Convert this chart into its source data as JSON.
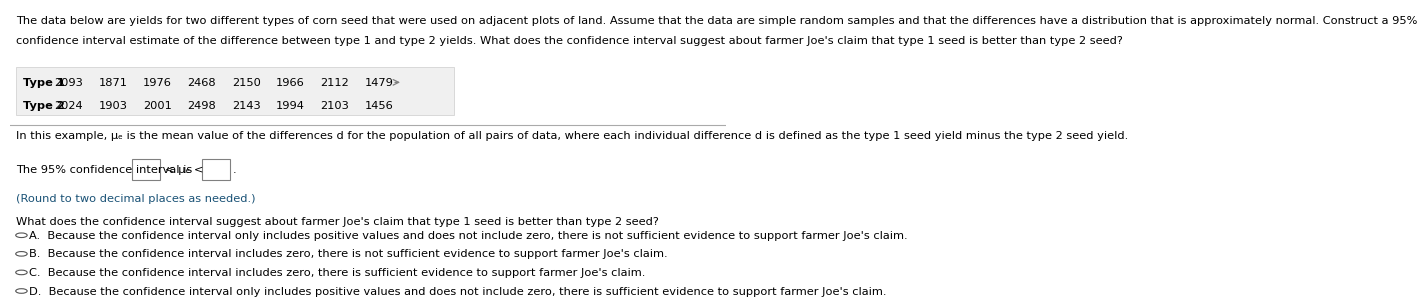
{
  "title_line1": "The data below are yields for two different types of corn seed that were used on adjacent plots of land. Assume that the data are simple random samples and that the differences have a distribution that is approximately normal. Construct a 95%",
  "title_line2": "confidence interval estimate of the difference between type 1 and type 2 yields. What does the confidence interval suggest about farmer Joe's claim that type 1 seed is better than type 2 seed?",
  "type1_label": "Type 1",
  "type2_label": "Type 2",
  "type1_values": [
    "2093",
    "1871",
    "1976",
    "2468",
    "2150",
    "1966",
    "2112",
    "1479"
  ],
  "type2_values": [
    "2024",
    "1903",
    "2001",
    "2498",
    "2143",
    "1994",
    "2103",
    "1456"
  ],
  "in_this_example": "In this example, μₑ is the mean value of the differences d for the population of all pairs of data, where each individual difference d is defined as the type 1 seed yield minus the type 2 seed yield.",
  "ci_text_before": "The 95% confidence interval is",
  "ci_middle": "< μₑ <",
  "ci_note": "(Round to two decimal places as needed.)",
  "question": "What does the confidence interval suggest about farmer Joe's claim that type 1 seed is better than type 2 seed?",
  "options": [
    "A.  Because the confidence interval only includes positive values and does not include zero, there is not sufficient evidence to support farmer Joe's claim.",
    "B.  Because the confidence interval includes zero, there is not sufficient evidence to support farmer Joe's claim.",
    "C.  Because the confidence interval includes zero, there is sufficient evidence to support farmer Joe's claim.",
    "D.  Because the confidence interval only includes positive values and does not include zero, there is sufficient evidence to support farmer Joe's claim."
  ],
  "bg_color": "#ffffff",
  "text_color": "#000000",
  "font_size": 8.2,
  "title_font_size": 8.2,
  "line_color": "#aaaaaa",
  "table_bg": "#f0f0f0",
  "table_edge": "#cccccc"
}
